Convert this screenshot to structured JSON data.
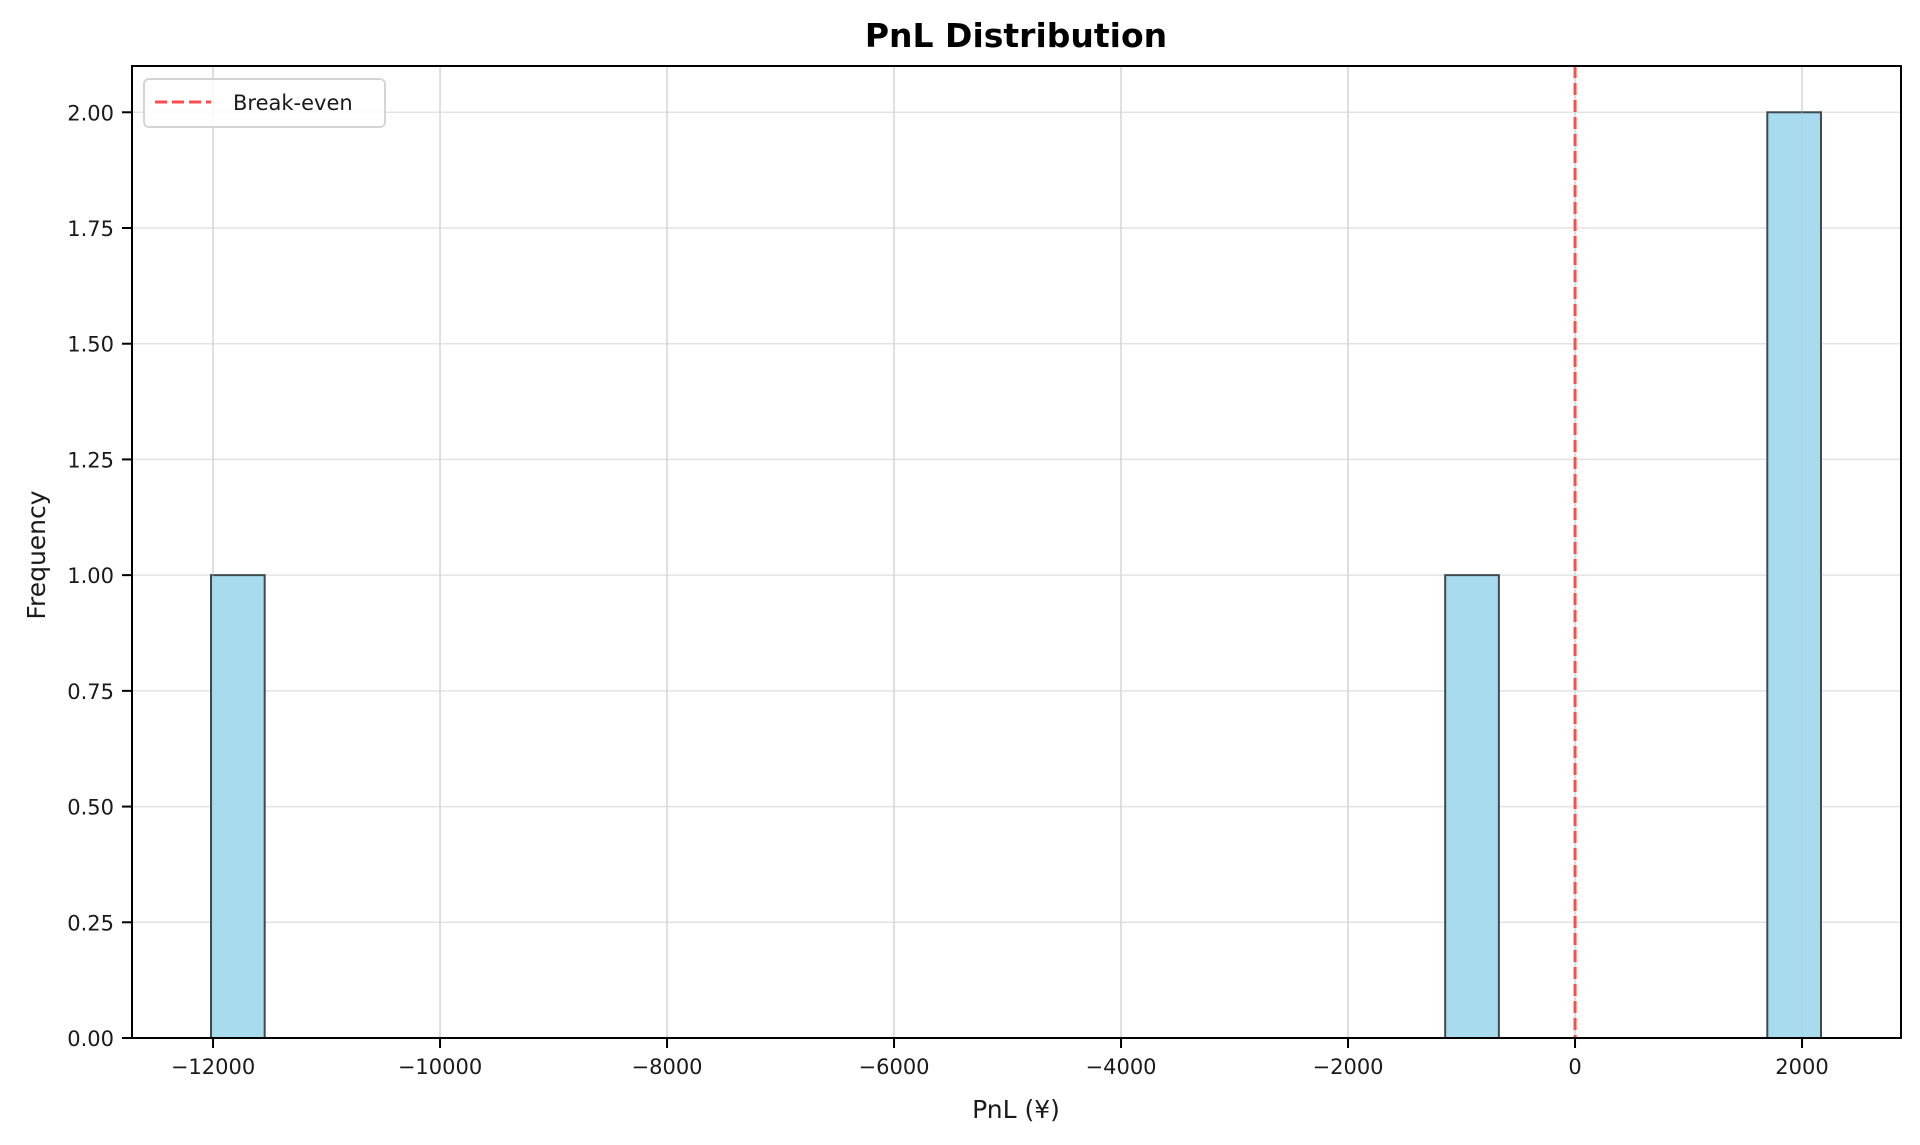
{
  "chart_data": {
    "type": "bar",
    "subtype": "histogram",
    "title": "PnL Distribution",
    "xlabel": "PnL (¥)",
    "ylabel": "Frequency",
    "xlim": [
      -12714,
      2872
    ],
    "ylim": [
      0,
      2.1
    ],
    "grid": true,
    "legend_position": "upper left",
    "xticks": [
      -12000,
      -10000,
      -8000,
      -6000,
      -4000,
      -2000,
      0,
      2000
    ],
    "xtick_labels": [
      "−12000",
      "−10000",
      "−8000",
      "−6000",
      "−4000",
      "−2000",
      "0",
      "2000"
    ],
    "yticks": [
      0,
      0.25,
      0.5,
      0.75,
      1.0,
      1.25,
      1.5,
      1.75,
      2.0
    ],
    "ytick_labels": [
      "0.00",
      "0.25",
      "0.50",
      "0.75",
      "1.00",
      "1.25",
      "1.50",
      "1.75",
      "2.00"
    ],
    "bins": {
      "count": 30,
      "min": -12018,
      "max": 2167
    },
    "bars": [
      {
        "x0": -12018,
        "x1": -11545,
        "count": 1
      },
      {
        "x0": -1144,
        "x1": -671,
        "count": 1
      },
      {
        "x0": 1694,
        "x1": 2167,
        "count": 2
      }
    ],
    "series": [
      {
        "name": "PnL",
        "values": [
          1,
          1,
          2
        ],
        "categories": [
          "-12018 to -11545",
          "-1144 to -671",
          "1694 to 2167"
        ]
      }
    ],
    "reference_lines": [
      {
        "orientation": "vertical",
        "x": 0,
        "label": "Break-even",
        "style": "dashed",
        "color": "#ff4d4d"
      }
    ],
    "legend": [
      {
        "label": "Break-even",
        "style": "dashed",
        "color": "#ff4d4d"
      }
    ],
    "colors": {
      "bar_fill": "#a9dbee",
      "bar_edge": "#3d4a50",
      "grid": "#e3e3e3",
      "axis": "#000000",
      "break_even": "#ff4d4d"
    }
  }
}
